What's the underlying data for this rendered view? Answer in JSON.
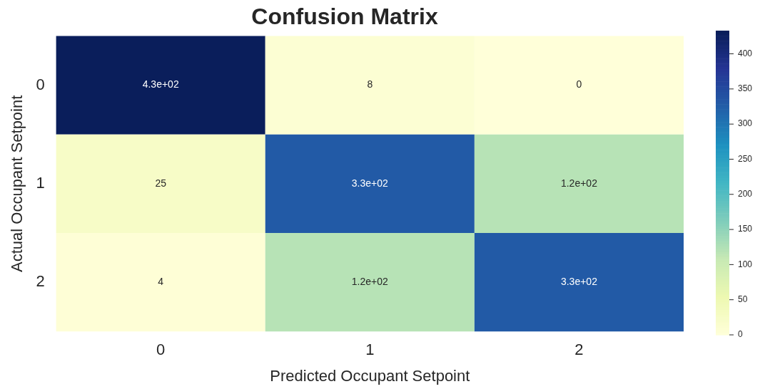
{
  "chart_data": {
    "type": "heatmap",
    "title": "Confusion Matrix",
    "xlabel": "Predicted Occupant Setpoint",
    "ylabel": "Actual Occupant Setpoint",
    "categories": [
      "0",
      "1",
      "2"
    ],
    "y_categories": [
      "0",
      "1",
      "2"
    ],
    "cells": [
      [
        430,
        8,
        0
      ],
      [
        25,
        330,
        120
      ],
      [
        4,
        120,
        330
      ]
    ],
    "cell_labels": [
      [
        "4.3e+02",
        "8",
        "0"
      ],
      [
        "25",
        "3.3e+02",
        "1.2e+02"
      ],
      [
        "4",
        "1.2e+02",
        "3.3e+02"
      ]
    ],
    "clim": [
      0,
      433
    ],
    "cticks": [
      0,
      50,
      100,
      150,
      200,
      250,
      300,
      350,
      400
    ]
  }
}
